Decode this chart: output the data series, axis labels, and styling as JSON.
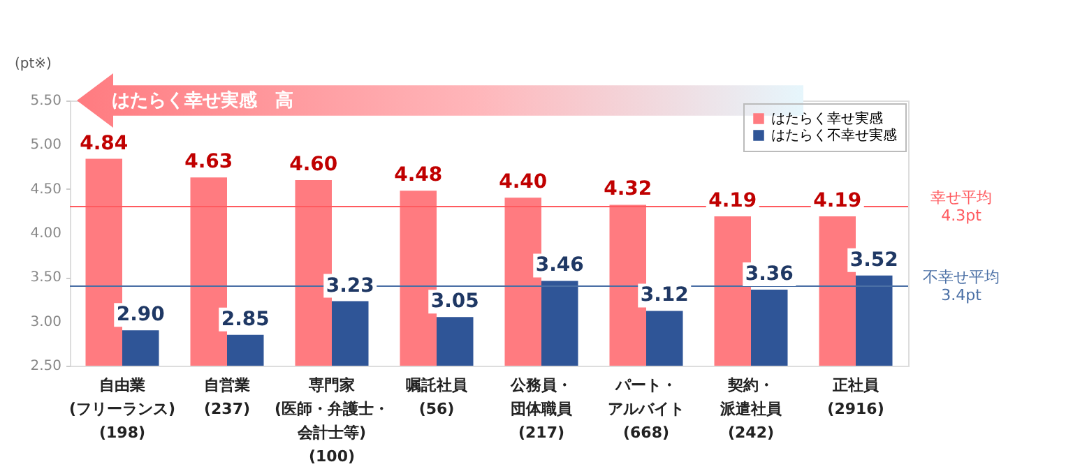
{
  "chart_data": {
    "type": "bar",
    "ylabel": "(pt※)",
    "annotations": [
      "はたらく幸せ実感　高"
    ],
    "categories": [
      "自由業\n(フリーランス)\n(198)",
      "自営業\n(237)",
      "専門家\n(医師・弁護士・会計士等)\n(100)",
      "嘱託社員\n(56)",
      "公務員・団体職員\n(217)",
      "パート・アルバイト\n(668)",
      "契約・派遣社員\n(242)",
      "正社員\n(2916)"
    ],
    "series": [
      {
        "name": "はたらく幸せ実感",
        "color": "#ff7b80",
        "values": [
          4.84,
          4.63,
          4.6,
          4.48,
          4.4,
          4.32,
          4.19,
          4.19
        ],
        "value_labels": [
          "4.84",
          "4.63",
          "4.60",
          "4.48",
          "4.40",
          "4.32",
          "4.19",
          "4.19"
        ]
      },
      {
        "name": "はたらく不幸せ実感",
        "color": "#2f5597",
        "values": [
          2.9,
          2.85,
          3.23,
          3.05,
          3.46,
          3.12,
          3.36,
          3.52
        ],
        "value_labels": [
          "2.90",
          "2.85",
          "3.23",
          "3.05",
          "3.46",
          "3.12",
          "3.36",
          "3.52"
        ]
      }
    ],
    "ylim": [
      2.5,
      5.5
    ],
    "yticks": [
      {
        "value": 2.5,
        "label": "2.50"
      },
      {
        "value": 3.0,
        "label": "3.00"
      },
      {
        "value": 3.5,
        "label": "3.50"
      },
      {
        "value": 4.0,
        "label": "4.00"
      },
      {
        "value": 4.5,
        "label": "4.50"
      },
      {
        "value": 5.0,
        "label": "5.00"
      },
      {
        "value": 5.5,
        "label": "5.50"
      }
    ],
    "ref_lines": [
      {
        "axis": "y",
        "value": 4.3,
        "label": "幸せ平均\n4.3pt",
        "color": "#ff5a5f"
      },
      {
        "axis": "y",
        "value": 3.4,
        "label": "不幸せ平均\n3.4pt",
        "color": "#4a6fa5"
      }
    ],
    "legend": "top right"
  }
}
